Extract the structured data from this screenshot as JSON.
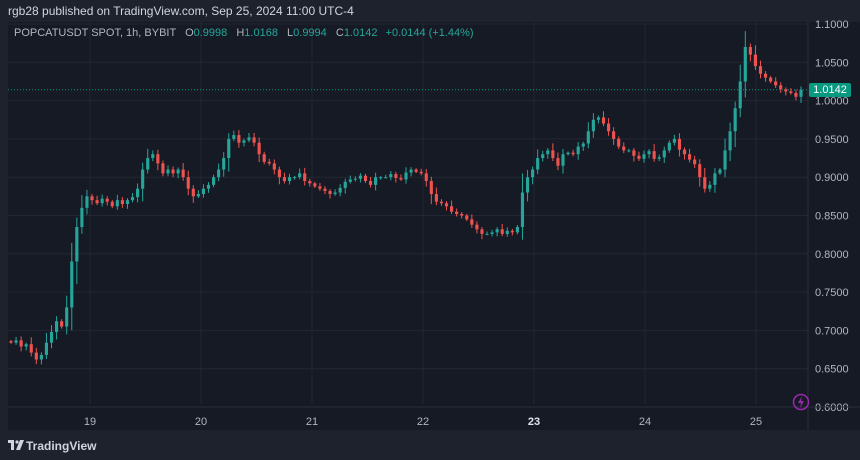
{
  "header": {
    "published_text": "rgb28 published on TradingView.com, Sep 25, 2024 11:00 UTC-4"
  },
  "legend": {
    "symbol_text": "POPCATUSDT SPOT, 1h, BYBIT",
    "o_label": "O",
    "o_value": "0.9998",
    "h_label": "H",
    "h_value": "1.0168",
    "l_label": "L",
    "l_value": "0.9994",
    "c_label": "C",
    "c_value": "1.0142",
    "change_value": "+0.0144 (+1.44%)"
  },
  "last_price_label": "1.0142",
  "footer": {
    "brand": "TradingView"
  },
  "colors": {
    "up": "#26a69a",
    "down": "#ef5350",
    "background": "#161a25",
    "grid": "#232733",
    "text": "#b2b5be",
    "last_price": "#089981"
  },
  "chart_data": {
    "type": "candlestick",
    "symbol": "POPCATUSDT",
    "interval": "1h",
    "exchange": "BYBIT",
    "ylim": [
      0.6,
      1.1
    ],
    "y_ticks": [
      "1.1000",
      "1.0500",
      "1.0000",
      "0.9500",
      "0.9000",
      "0.8500",
      "0.8000",
      "0.7500",
      "0.7000",
      "0.6500",
      "0.6000"
    ],
    "x_ticks": [
      {
        "label": "19",
        "day": 19
      },
      {
        "label": "20",
        "day": 20
      },
      {
        "label": "21",
        "day": 21
      },
      {
        "label": "22",
        "day": 22
      },
      {
        "label": "23",
        "day": 23,
        "bold": true
      },
      {
        "label": "24",
        "day": 24
      },
      {
        "label": "25",
        "day": 25
      }
    ],
    "x_range_days": [
      18.2,
      25.45
    ],
    "last_price": 1.0142,
    "candles_close": [
      0.684,
      0.687,
      0.679,
      0.682,
      0.671,
      0.662,
      0.668,
      0.684,
      0.698,
      0.712,
      0.705,
      0.73,
      0.79,
      0.835,
      0.86,
      0.875,
      0.87,
      0.866,
      0.872,
      0.868,
      0.862,
      0.87,
      0.865,
      0.87,
      0.874,
      0.885,
      0.91,
      0.925,
      0.93,
      0.918,
      0.905,
      0.91,
      0.905,
      0.91,
      0.9,
      0.885,
      0.875,
      0.878,
      0.885,
      0.89,
      0.9,
      0.91,
      0.925,
      0.95,
      0.955,
      0.945,
      0.948,
      0.952,
      0.945,
      0.93,
      0.92,
      0.918,
      0.91,
      0.9,
      0.895,
      0.9,
      0.9,
      0.905,
      0.895,
      0.892,
      0.888,
      0.885,
      0.882,
      0.878,
      0.88,
      0.886,
      0.894,
      0.897,
      0.898,
      0.902,
      0.895,
      0.89,
      0.9,
      0.9,
      0.9,
      0.904,
      0.899,
      0.897,
      0.906,
      0.91,
      0.907,
      0.905,
      0.895,
      0.878,
      0.868,
      0.866,
      0.862,
      0.855,
      0.852,
      0.85,
      0.845,
      0.838,
      0.832,
      0.826,
      0.826,
      0.828,
      0.832,
      0.826,
      0.83,
      0.828,
      0.835,
      0.88,
      0.9,
      0.91,
      0.925,
      0.93,
      0.935,
      0.925,
      0.915,
      0.93,
      0.932,
      0.93,
      0.94,
      0.944,
      0.96,
      0.975,
      0.978,
      0.97,
      0.96,
      0.95,
      0.94,
      0.935,
      0.935,
      0.928,
      0.924,
      0.93,
      0.934,
      0.924,
      0.926,
      0.935,
      0.945,
      0.95,
      0.936,
      0.93,
      0.923,
      0.917,
      0.9,
      0.885,
      0.89,
      0.905,
      0.91,
      0.935,
      0.96,
      0.99,
      1.025,
      1.07,
      1.06,
      1.045,
      1.035,
      1.03,
      1.025,
      1.02,
      1.015,
      1.012,
      1.01,
      1.005,
      1.0142
    ]
  }
}
